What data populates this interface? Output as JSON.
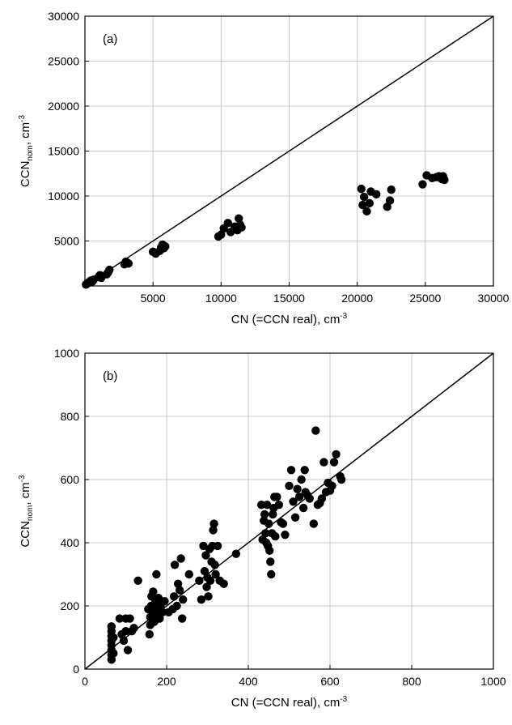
{
  "chart_data": [
    {
      "type": "scatter",
      "panel_label": "(a)",
      "xlabel_main": "CN (=CCN real),  cm",
      "xlabel_sup": "-3",
      "ylabel_main": "CCN",
      "ylabel_sub": "nom",
      "ylabel_tail": ",  cm",
      "ylabel_sup": "-3",
      "xlim": [
        0,
        30000
      ],
      "ylim": [
        0,
        30000
      ],
      "x_ticks": [
        5000,
        10000,
        15000,
        20000,
        25000,
        30000
      ],
      "y_ticks": [
        5000,
        10000,
        15000,
        20000,
        25000,
        30000
      ],
      "grid": true,
      "reference_line": "1:1",
      "points": [
        [
          80,
          150
        ],
        [
          150,
          250
        ],
        [
          220,
          320
        ],
        [
          300,
          420
        ],
        [
          380,
          520
        ],
        [
          450,
          600
        ],
        [
          550,
          500
        ],
        [
          650,
          700
        ],
        [
          1000,
          1000
        ],
        [
          1100,
          1200
        ],
        [
          1200,
          900
        ],
        [
          1700,
          1500
        ],
        [
          1800,
          1800
        ],
        [
          1600,
          1300
        ],
        [
          2900,
          2400
        ],
        [
          3100,
          2600
        ],
        [
          3200,
          2500
        ],
        [
          3000,
          2700
        ],
        [
          5000,
          3800
        ],
        [
          5200,
          3600
        ],
        [
          5500,
          3900
        ],
        [
          5600,
          4300
        ],
        [
          5700,
          4600
        ],
        [
          5800,
          4200
        ],
        [
          5900,
          4400
        ],
        [
          9800,
          5500
        ],
        [
          10000,
          5700
        ],
        [
          10200,
          6400
        ],
        [
          10500,
          7000
        ],
        [
          10700,
          6000
        ],
        [
          11000,
          6600
        ],
        [
          11200,
          6200
        ],
        [
          11300,
          7500
        ],
        [
          11400,
          6800
        ],
        [
          11500,
          6500
        ],
        [
          20300,
          10800
        ],
        [
          20400,
          9000
        ],
        [
          20500,
          9900
        ],
        [
          20700,
          8300
        ],
        [
          20900,
          9200
        ],
        [
          21000,
          10500
        ],
        [
          21400,
          10200
        ],
        [
          22200,
          8800
        ],
        [
          22400,
          9500
        ],
        [
          22500,
          10700
        ],
        [
          24800,
          11300
        ],
        [
          25100,
          12300
        ],
        [
          25500,
          12000
        ],
        [
          25800,
          12100
        ],
        [
          26000,
          12200
        ],
        [
          26200,
          11900
        ],
        [
          26300,
          12200
        ],
        [
          26400,
          11800
        ]
      ]
    },
    {
      "type": "scatter",
      "panel_label": "(b)",
      "xlabel_main": "CN (=CCN real),  cm",
      "xlabel_sup": "-3",
      "ylabel_main": "CCN",
      "ylabel_sub": "nom",
      "ylabel_tail": ",  cm",
      "ylabel_sup": "-3",
      "xlim": [
        0,
        1000
      ],
      "ylim": [
        0,
        1000
      ],
      "x_ticks": [
        0,
        200,
        400,
        600,
        800,
        1000
      ],
      "y_ticks": [
        0,
        200,
        400,
        600,
        800,
        1000
      ],
      "grid": true,
      "reference_line": "1:1",
      "points": [
        [
          65,
          30
        ],
        [
          65,
          45
        ],
        [
          65,
          60
        ],
        [
          65,
          75
        ],
        [
          65,
          90
        ],
        [
          65,
          105
        ],
        [
          65,
          120
        ],
        [
          65,
          135
        ],
        [
          70,
          50
        ],
        [
          70,
          100
        ],
        [
          85,
          160
        ],
        [
          90,
          110
        ],
        [
          95,
          90
        ],
        [
          100,
          160
        ],
        [
          100,
          120
        ],
        [
          105,
          60
        ],
        [
          110,
          160
        ],
        [
          115,
          120
        ],
        [
          120,
          130
        ],
        [
          130,
          280
        ],
        [
          155,
          190
        ],
        [
          158,
          110
        ],
        [
          160,
          140
        ],
        [
          160,
          165
        ],
        [
          162,
          200
        ],
        [
          163,
          230
        ],
        [
          165,
          180
        ],
        [
          167,
          245
        ],
        [
          170,
          150
        ],
        [
          172,
          210
        ],
        [
          175,
          300
        ],
        [
          175,
          190
        ],
        [
          178,
          170
        ],
        [
          180,
          225
        ],
        [
          183,
          160
        ],
        [
          185,
          200
        ],
        [
          190,
          180
        ],
        [
          195,
          215
        ],
        [
          205,
          180
        ],
        [
          215,
          190
        ],
        [
          218,
          230
        ],
        [
          220,
          330
        ],
        [
          225,
          200
        ],
        [
          228,
          270
        ],
        [
          232,
          250
        ],
        [
          235,
          350
        ],
        [
          238,
          160
        ],
        [
          240,
          220
        ],
        [
          255,
          300
        ],
        [
          280,
          280
        ],
        [
          285,
          220
        ],
        [
          290,
          390
        ],
        [
          293,
          310
        ],
        [
          296,
          360
        ],
        [
          298,
          260
        ],
        [
          300,
          290
        ],
        [
          302,
          230
        ],
        [
          305,
          380
        ],
        [
          307,
          280
        ],
        [
          310,
          340
        ],
        [
          312,
          390
        ],
        [
          314,
          440
        ],
        [
          316,
          460
        ],
        [
          318,
          330
        ],
        [
          320,
          300
        ],
        [
          325,
          390
        ],
        [
          330,
          280
        ],
        [
          340,
          270
        ],
        [
          370,
          365
        ],
        [
          432,
          520
        ],
        [
          435,
          410
        ],
        [
          438,
          470
        ],
        [
          440,
          490
        ],
        [
          442,
          430
        ],
        [
          444,
          400
        ],
        [
          446,
          520
        ],
        [
          448,
          390
        ],
        [
          450,
          460
        ],
        [
          452,
          375
        ],
        [
          454,
          340
        ],
        [
          456,
          300
        ],
        [
          458,
          430
        ],
        [
          460,
          490
        ],
        [
          462,
          510
        ],
        [
          464,
          545
        ],
        [
          466,
          420
        ],
        [
          470,
          545
        ],
        [
          475,
          520
        ],
        [
          480,
          465
        ],
        [
          485,
          460
        ],
        [
          490,
          425
        ],
        [
          500,
          580
        ],
        [
          505,
          630
        ],
        [
          510,
          530
        ],
        [
          515,
          480
        ],
        [
          520,
          570
        ],
        [
          525,
          545
        ],
        [
          530,
          600
        ],
        [
          535,
          510
        ],
        [
          538,
          630
        ],
        [
          540,
          560
        ],
        [
          545,
          550
        ],
        [
          550,
          540
        ],
        [
          560,
          460
        ],
        [
          565,
          755
        ],
        [
          570,
          520
        ],
        [
          575,
          525
        ],
        [
          580,
          540
        ],
        [
          585,
          655
        ],
        [
          590,
          560
        ],
        [
          595,
          590
        ],
        [
          600,
          565
        ],
        [
          605,
          580
        ],
        [
          610,
          655
        ],
        [
          615,
          680
        ],
        [
          625,
          610
        ],
        [
          628,
          600
        ]
      ]
    }
  ]
}
